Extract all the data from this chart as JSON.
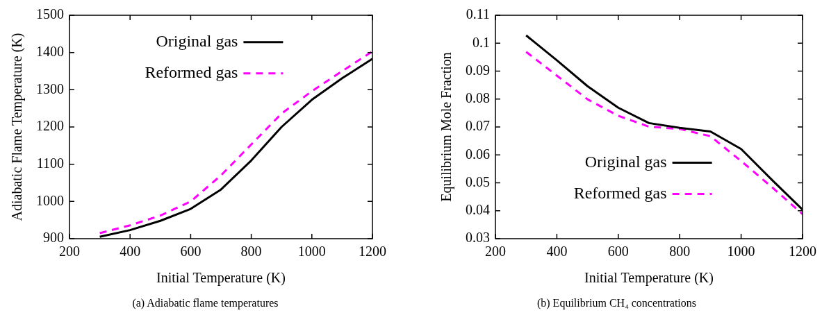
{
  "chart_data": [
    {
      "type": "line",
      "xlabel": "Initial Temperature (K)",
      "ylabel": "Adiabatic Flame Temperature (K)",
      "x": [
        300,
        400,
        500,
        600,
        700,
        800,
        900,
        1000,
        1100,
        1200
      ],
      "xlim": [
        200,
        1200
      ],
      "xticks": [
        200,
        400,
        600,
        800,
        1000,
        1200
      ],
      "ylim": [
        900,
        1500
      ],
      "yticks": [
        900,
        1000,
        1100,
        1200,
        1300,
        1400,
        1500
      ],
      "legend": "top",
      "annotations": [
        "(a)  Adiabatic flame temperatures"
      ],
      "series": [
        {
          "name": "Original gas",
          "color": "#000000",
          "line_style": "solid",
          "values": [
            905,
            923,
            948,
            980,
            1032,
            1110,
            1200,
            1273,
            1331,
            1383
          ]
        },
        {
          "name": "Reformed gas",
          "color": "#ff00ff",
          "line_style": "dashed",
          "values": [
            915,
            936,
            962,
            1000,
            1070,
            1153,
            1236,
            1296,
            1350,
            1403
          ]
        }
      ]
    },
    {
      "type": "line",
      "xlabel": "Initial Temperature (K)",
      "ylabel": "Equilibrium Mole Fraction",
      "x": [
        300,
        400,
        500,
        600,
        700,
        800,
        900,
        1000,
        1100,
        1200
      ],
      "xlim": [
        200,
        1200
      ],
      "xticks": [
        200,
        400,
        600,
        800,
        1000,
        1200
      ],
      "ylim": [
        0.03,
        0.11
      ],
      "yticks": [
        0.03,
        0.04,
        0.05,
        0.06,
        0.07,
        0.08,
        0.09,
        0.1,
        0.11
      ],
      "legend": "bottom",
      "annotations": [
        "(b)  Equilibrium CH₄ concentrations"
      ],
      "series": [
        {
          "name": "Original gas",
          "color": "#000000",
          "line_style": "solid",
          "values": [
            0.1028,
            0.0939,
            0.0846,
            0.0769,
            0.0714,
            0.0697,
            0.0684,
            0.0621,
            0.0511,
            0.0404
          ]
        },
        {
          "name": "Reformed gas",
          "color": "#ff00ff",
          "line_style": "dashed",
          "values": [
            0.0969,
            0.0884,
            0.0799,
            0.074,
            0.0701,
            0.0693,
            0.0667,
            0.0578,
            0.0485,
            0.0388
          ]
        }
      ]
    }
  ]
}
